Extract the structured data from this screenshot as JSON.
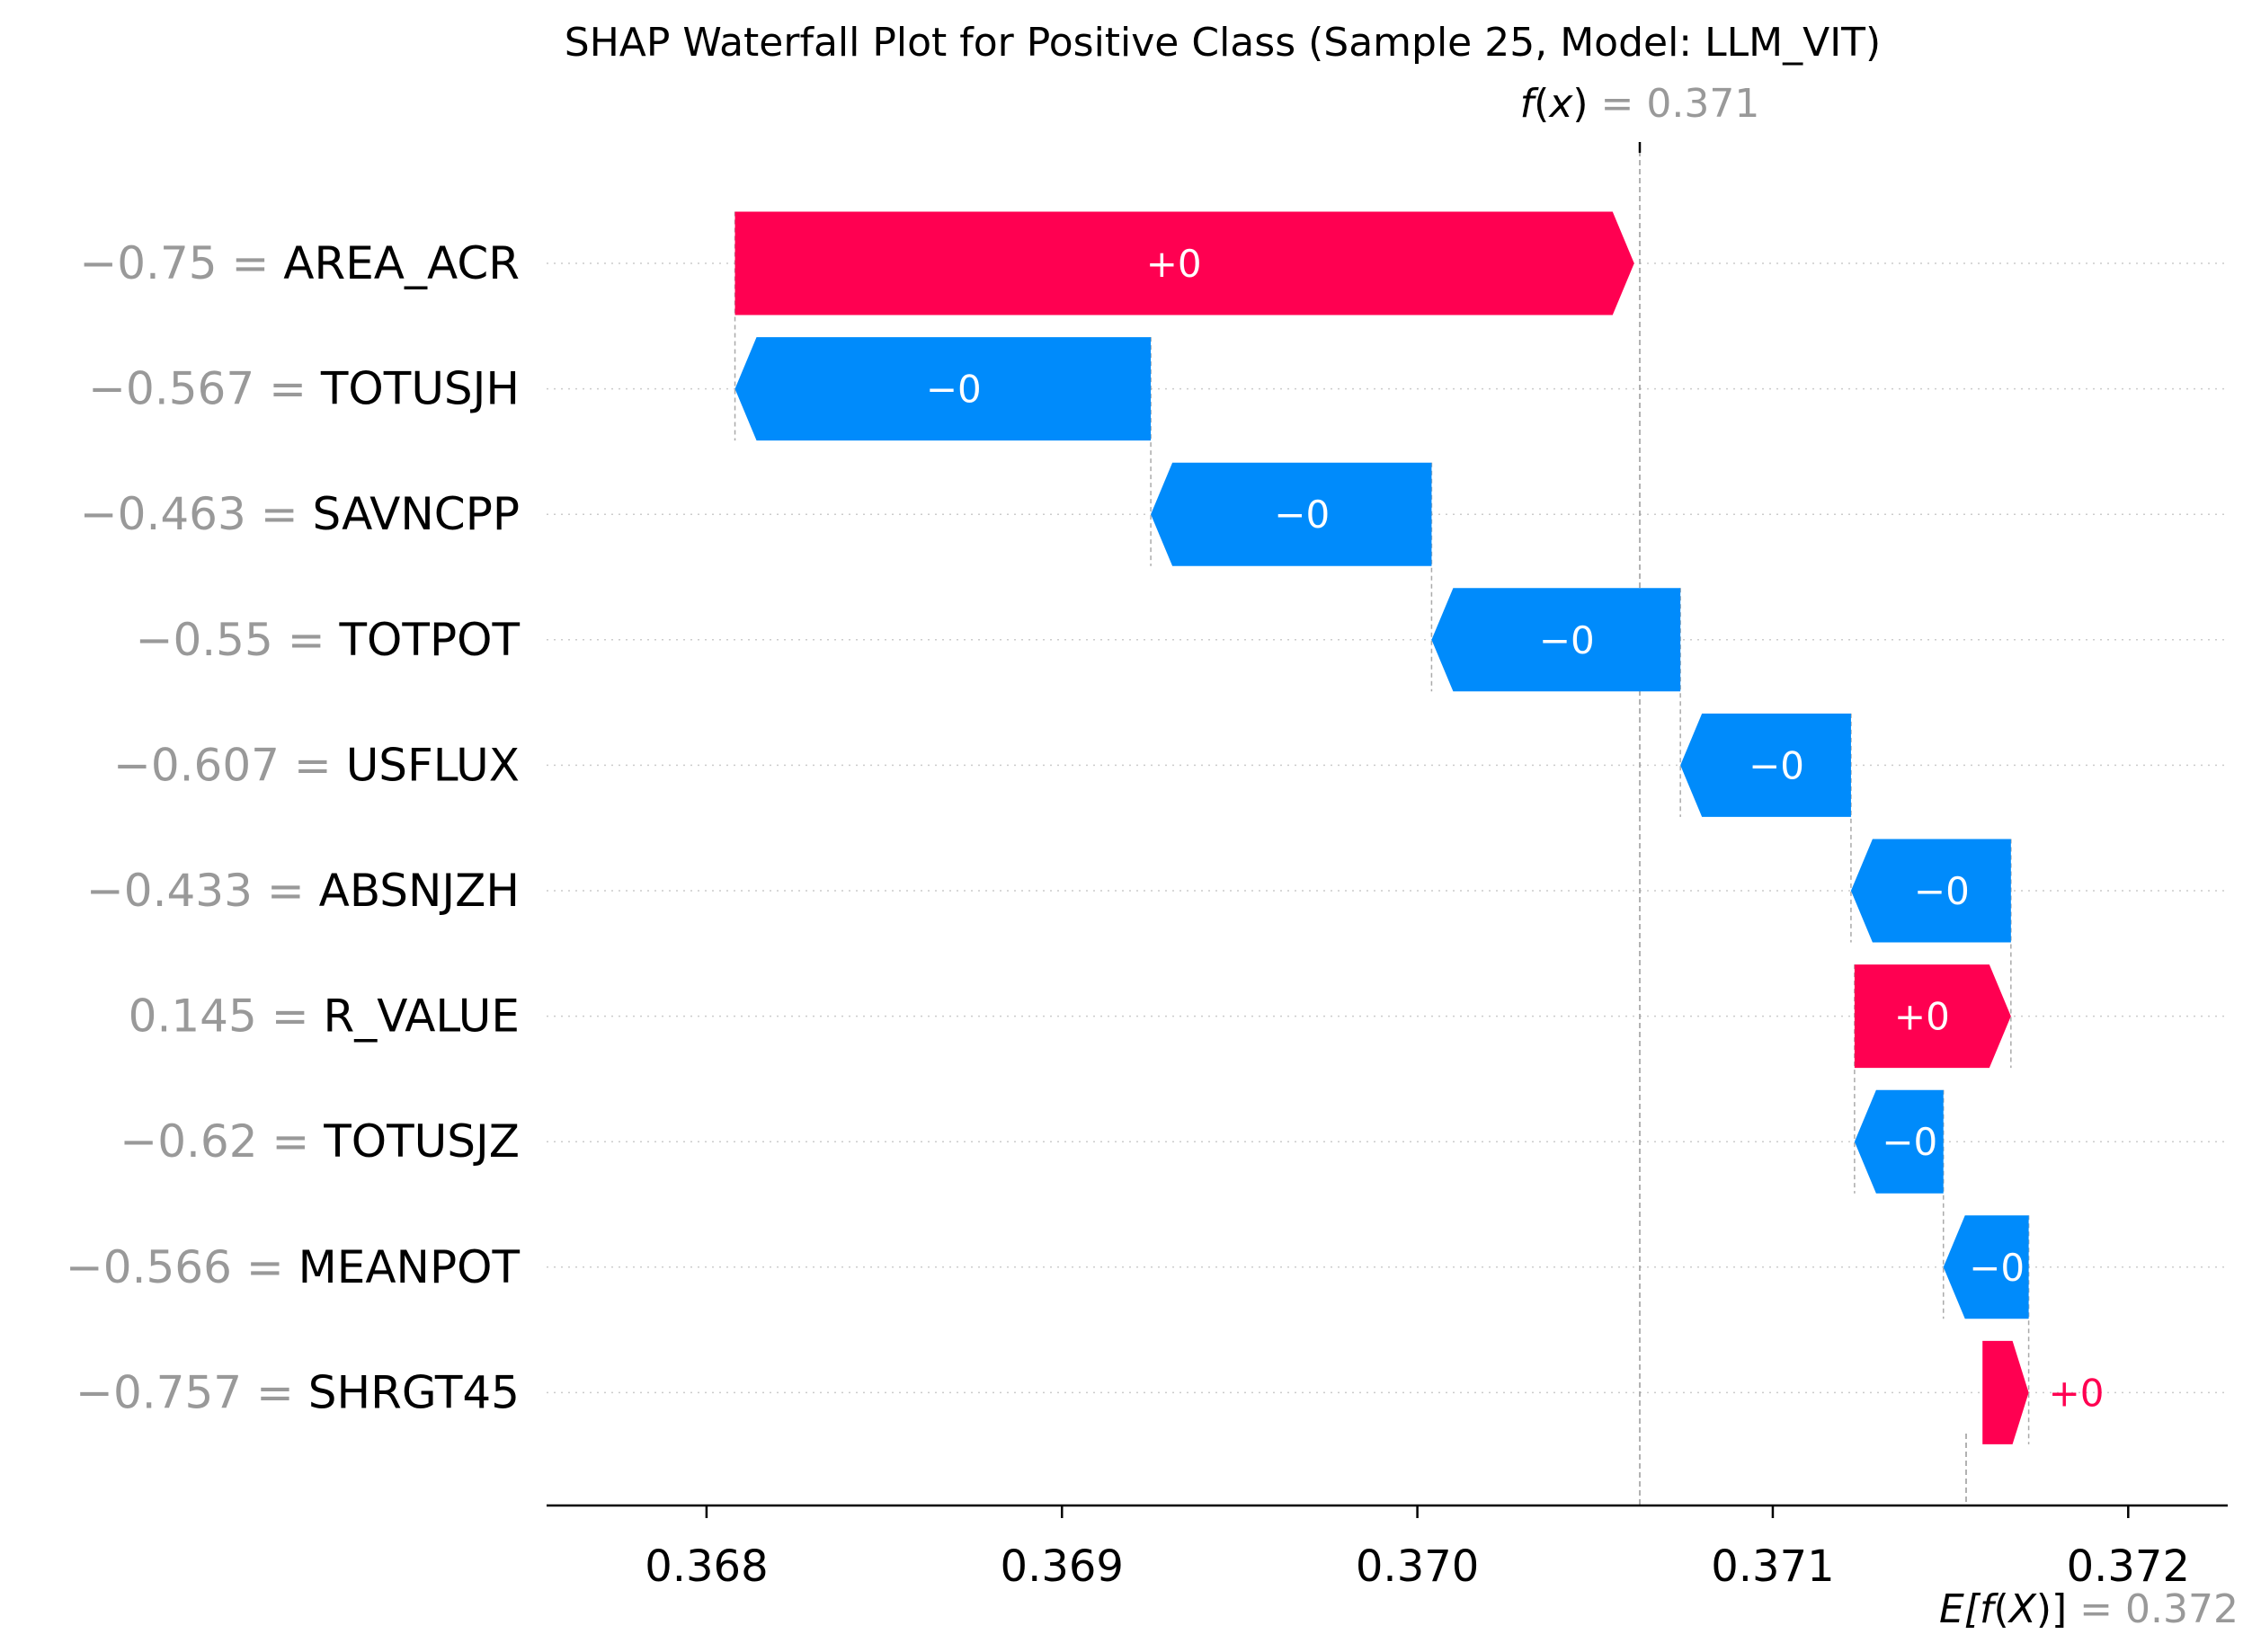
{
  "chart_data": {
    "type": "waterfall",
    "title": "SHAP Waterfall Plot for Positive Class (Sample 25, Model: LLM_VIT)",
    "fx": {
      "prefix": "f",
      "var": "x",
      "eq": " = ",
      "value": "0.371",
      "numeric": 0.37061
    },
    "efx": {
      "prefix": "E[",
      "f": "f",
      "var": "X",
      "suffix": ")]",
      "eq": " = ",
      "value": "0.372",
      "numeric": 0.37155
    },
    "xlim": [
      0.36755,
      0.37228
    ],
    "ticks": [
      {
        "value": 0.368,
        "label": "0.368"
      },
      {
        "value": 0.369,
        "label": "0.369"
      },
      {
        "value": 0.37,
        "label": "0.370"
      },
      {
        "value": 0.371,
        "label": "0.371"
      },
      {
        "value": 0.372,
        "label": "0.372"
      }
    ],
    "features": [
      {
        "value": "−0.75",
        "name": "AREA_ACR",
        "shap": 0.00253,
        "label": "+0",
        "label_outside": false
      },
      {
        "value": "−0.567",
        "name": "TOTUSJH",
        "shap": -0.00117,
        "label": "−0",
        "label_outside": false
      },
      {
        "value": "−0.463",
        "name": "SAVNCPP",
        "shap": -0.00079,
        "label": "−0",
        "label_outside": false
      },
      {
        "value": "−0.55",
        "name": "TOTPOT",
        "shap": -0.0007,
        "label": "−0",
        "label_outside": false
      },
      {
        "value": "−0.607",
        "name": "USFLUX",
        "shap": -0.00048,
        "label": "−0",
        "label_outside": false
      },
      {
        "value": "−0.433",
        "name": "ABSNJZH",
        "shap": -0.00045,
        "label": "−0",
        "label_outside": false
      },
      {
        "value": "0.145",
        "name": "R_VALUE",
        "shap": 0.00044,
        "label": "+0",
        "label_outside": false
      },
      {
        "value": "−0.62",
        "name": "TOTUSJZ",
        "shap": -0.00025,
        "label": "−0",
        "label_outside": false
      },
      {
        "value": "−0.566",
        "name": "MEANPOT",
        "shap": -0.00024,
        "label": "−0",
        "label_outside": false
      },
      {
        "value": "−0.757",
        "name": "SHRGT45",
        "shap": 0.00013,
        "label": "+0",
        "label_outside": true
      }
    ],
    "colors": {
      "positive": "#ff0051",
      "negative": "#008bfb",
      "value_text": "#999999",
      "text": "#000000",
      "grid": "#cccccc"
    }
  }
}
